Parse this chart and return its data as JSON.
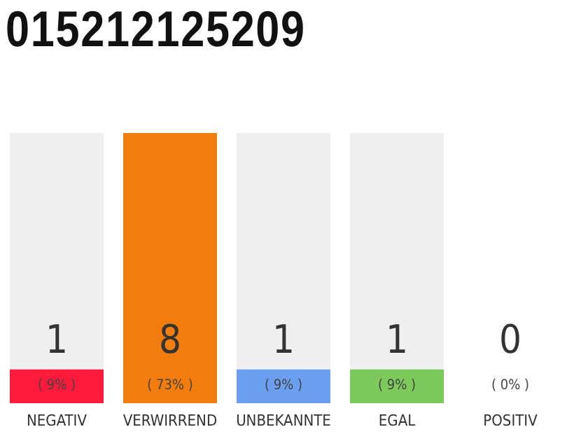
{
  "chart_data": {
    "type": "bar",
    "title": "015212125209",
    "categories": [
      "NEGATIV",
      "VERWIRREND",
      "UNBEKANNTE",
      "EGAL",
      "POSITIV"
    ],
    "values": [
      1,
      8,
      1,
      1,
      0
    ],
    "colors": [
      "#ff1a3c",
      "#f27c0c",
      "#6b9ff0",
      "#7dc95c",
      "#cccccc"
    ],
    "ylim": [
      0,
      8
    ],
    "tick_labels": "x",
    "grid": false,
    "legend": false,
    "data_labels": true,
    "annotations": [
      "( 9% )",
      "( 73% )",
      "( 9% )",
      "( 9% )",
      "( 0% )"
    ]
  }
}
